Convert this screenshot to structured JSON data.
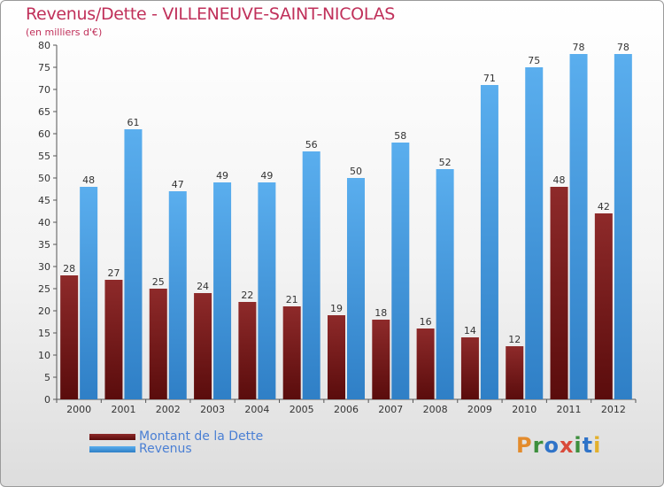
{
  "colors": {
    "dette": "#7a1c1c",
    "revenus": "#3a8fd8",
    "title": "#c0305a",
    "legend_text": "#4a7fd4"
  },
  "chart_data": {
    "type": "bar",
    "title": "Revenus/Dette - VILLENEUVE-SAINT-NICOLAS",
    "subtitle": "(en milliers d'€)",
    "categories": [
      "2000",
      "2001",
      "2002",
      "2003",
      "2004",
      "2005",
      "2006",
      "2007",
      "2008",
      "2009",
      "2010",
      "2011",
      "2012"
    ],
    "series": [
      {
        "name": "Montant de la Dette",
        "values": [
          28,
          27,
          25,
          24,
          22,
          21,
          19,
          18,
          16,
          14,
          12,
          48,
          42
        ]
      },
      {
        "name": "Revenus",
        "values": [
          48,
          61,
          47,
          49,
          49,
          56,
          50,
          58,
          52,
          71,
          75,
          78,
          78
        ]
      }
    ],
    "ylim": [
      0,
      80
    ],
    "yticks": [
      0,
      5,
      10,
      15,
      20,
      25,
      30,
      35,
      40,
      45,
      50,
      55,
      60,
      65,
      70,
      75,
      80
    ],
    "grid": false,
    "legend_position": "bottom-left"
  },
  "legend": {
    "items": [
      "Montant de la Dette",
      "Revenus"
    ]
  },
  "logo": {
    "letters": [
      "P",
      "r",
      "o",
      "x",
      "i",
      "t",
      "i"
    ],
    "colors": [
      "#e38b2c",
      "#3d8f3d",
      "#2f73c8",
      "#d94a3a",
      "#3d8f3d",
      "#2f73c8",
      "#e3b02c"
    ]
  }
}
